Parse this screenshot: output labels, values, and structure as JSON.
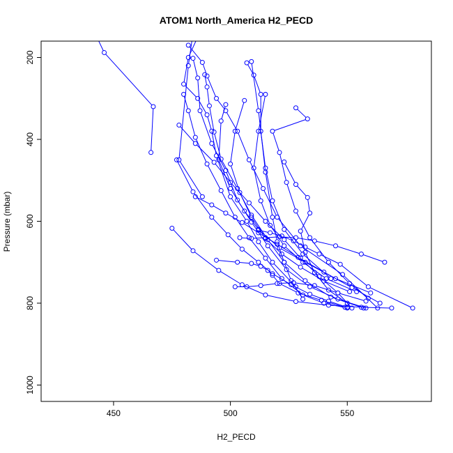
{
  "chart_data": {
    "type": "line",
    "title": "ATOM1 North_America H2_PECD",
    "xlabel": "H2_PECD",
    "ylabel": "Pressure (mbar)",
    "xlim": [
      419,
      586
    ],
    "ylim": [
      1040,
      160
    ],
    "y_reversed": true,
    "xticks": [
      450,
      500,
      550
    ],
    "yticks": [
      200,
      400,
      600,
      800,
      1000
    ],
    "grid": false,
    "legend": "none",
    "series_color": "#0000ff",
    "marker": "open-circle",
    "series": [
      {
        "x": [
          442,
          446,
          467,
          466
        ],
        "y": [
          140,
          188,
          320,
          432
        ]
      },
      {
        "x": [
          484,
          482,
          478,
          488
        ],
        "y": [
          140,
          220,
          450,
          540
        ]
      },
      {
        "x": [
          486,
          482,
          480,
          486,
          490,
          492,
          494,
          500,
          507,
          512,
          518,
          528
        ],
        "y": [
          150,
          200,
          265,
          300,
          340,
          380,
          440,
          540,
          600,
          650,
          700,
          760
        ]
      },
      {
        "x": [
          482,
          488,
          490,
          494,
          498,
          503,
          508,
          514,
          520,
          530,
          548,
          563
        ],
        "y": [
          170,
          212,
          245,
          300,
          330,
          380,
          450,
          520,
          590,
          660,
          730,
          812
        ]
      },
      {
        "x": [
          484,
          486,
          487,
          492,
          498,
          503,
          509,
          516,
          524,
          534,
          546,
          558
        ],
        "y": [
          202,
          250,
          330,
          410,
          476,
          548,
          602,
          660,
          718,
          760,
          790,
          812
        ]
      },
      {
        "x": [
          489,
          490,
          491,
          493,
          496,
          503,
          509,
          516,
          523,
          532,
          543,
          557
        ],
        "y": [
          242,
          272,
          318,
          382,
          448,
          520,
          585,
          645,
          700,
          745,
          785,
          812
        ]
      },
      {
        "x": [
          480,
          482,
          485,
          490,
          496,
          502,
          508,
          515,
          522,
          531,
          540,
          550
        ],
        "y": [
          290,
          330,
          395,
          460,
          525,
          590,
          640,
          690,
          740,
          780,
          800,
          812
        ]
      },
      {
        "x": [
          478,
          485,
          493,
          500,
          508,
          515,
          523,
          530,
          538,
          546,
          552
        ],
        "y": [
          365,
          410,
          456,
          505,
          555,
          600,
          645,
          690,
          735,
          775,
          812
        ]
      },
      {
        "x": [
          477,
          484,
          492,
          499,
          505,
          512,
          518,
          526,
          534,
          542,
          550
        ],
        "y": [
          450,
          528,
          590,
          633,
          668,
          700,
          728,
          755,
          778,
          795,
          810
        ]
      },
      {
        "x": [
          475,
          484,
          495,
          505,
          515,
          528,
          542,
          556,
          569
        ],
        "y": [
          617,
          672,
          720,
          755,
          780,
          796,
          805,
          810,
          812
        ]
      },
      {
        "x": [
          498,
          496,
          495,
          500,
          506,
          512,
          521,
          532,
          545,
          560
        ],
        "y": [
          315,
          355,
          450,
          520,
          575,
          620,
          665,
          700,
          740,
          775
        ]
      },
      {
        "x": [
          506,
          502,
          500,
          504,
          509,
          515,
          522,
          530,
          540,
          551
        ],
        "y": [
          305,
          380,
          460,
          530,
          590,
          642,
          680,
          712,
          746,
          772
        ]
      },
      {
        "x": [
          507,
          510,
          513,
          513,
          515,
          518,
          523,
          531,
          543
        ],
        "y": [
          213,
          243,
          290,
          380,
          470,
          550,
          620,
          680,
          740
        ]
      },
      {
        "x": [
          515,
          512,
          510,
          513,
          517,
          523,
          531,
          541,
          554
        ],
        "y": [
          290,
          380,
          470,
          550,
          610,
          660,
          700,
          740,
          772
        ]
      },
      {
        "x": [
          528,
          533,
          518,
          521,
          524,
          528,
          534,
          542,
          551,
          559
        ],
        "y": [
          323,
          350,
          380,
          432,
          505,
          575,
          640,
          700,
          752,
          788
        ]
      },
      {
        "x": [
          509,
          512,
          515,
          518,
          520,
          523,
          526,
          531
        ],
        "y": [
          210,
          330,
          480,
          590,
          650,
          700,
          745,
          790
        ]
      },
      {
        "x": [
          523,
          528,
          533,
          534,
          530,
          532,
          536,
          542,
          550
        ],
        "y": [
          455,
          510,
          542,
          580,
          624,
          676,
          725,
          768,
          800
        ]
      },
      {
        "x": [
          494,
          503,
          509,
          513,
          516,
          518,
          521,
          529,
          539,
          549
        ],
        "y": [
          695,
          700,
          703,
          710,
          720,
          732,
          752,
          775,
          793,
          810
        ]
      },
      {
        "x": [
          502,
          507,
          513,
          520,
          527,
          536,
          546,
          558
        ],
        "y": [
          760,
          760,
          757,
          752,
          750,
          757,
          775,
          795
        ]
      },
      {
        "x": [
          504,
          509,
          515,
          521,
          528,
          536,
          545,
          556,
          566
        ],
        "y": [
          640,
          642,
          640,
          638,
          640,
          648,
          660,
          680,
          700
        ]
      },
      {
        "x": [
          512,
          517,
          522,
          527,
          532,
          538,
          547,
          559,
          578
        ],
        "y": [
          622,
          628,
          636,
          648,
          663,
          680,
          705,
          760,
          812
        ]
      },
      {
        "x": [
          485,
          492,
          498,
          505,
          512,
          520,
          529,
          540,
          552,
          564
        ],
        "y": [
          540,
          560,
          580,
          603,
          628,
          656,
          688,
          724,
          762,
          800
        ]
      }
    ]
  }
}
